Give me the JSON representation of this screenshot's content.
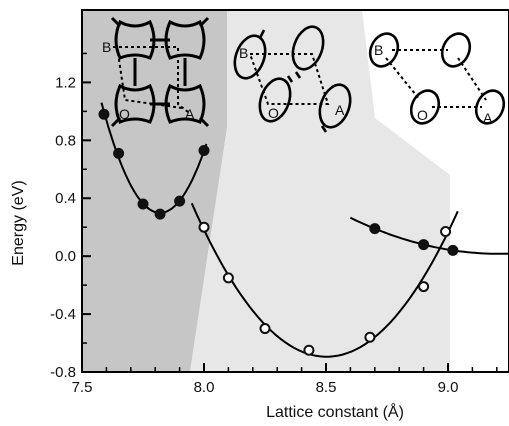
{
  "chart_data": {
    "type": "scatter",
    "xlabel": "Lattice constant (Å)",
    "ylabel": "Energy (eV)",
    "xlim": [
      7.5,
      9.25
    ],
    "ylim": [
      -0.8,
      1.7
    ],
    "x_ticks": [
      7.5,
      8.0,
      8.5,
      9.0
    ],
    "x_tick_labels": [
      "7.5",
      "8.0",
      "8.5",
      "9.0"
    ],
    "y_ticks": [
      -0.8,
      -0.4,
      0.0,
      0.4,
      0.8,
      1.2
    ],
    "y_tick_labels": [
      "-0.8",
      "-0.4",
      "0.0",
      "0.4",
      "0.8",
      "1.2"
    ],
    "grid": false,
    "legend": "none",
    "series": [
      {
        "marker": "filled-circle",
        "x": [
          7.59,
          7.65,
          7.75,
          7.82,
          7.9,
          8.0
        ],
        "y": [
          0.98,
          0.71,
          0.36,
          0.29,
          0.38,
          0.73
        ]
      },
      {
        "marker": "open-circle",
        "x": [
          8.0,
          8.1,
          8.25,
          8.43,
          8.68,
          8.9,
          8.99
        ],
        "y": [
          0.2,
          -0.15,
          -0.5,
          -0.65,
          -0.56,
          -0.21,
          0.17
        ]
      },
      {
        "marker": "filled-circle",
        "x": [
          8.7,
          8.9,
          9.02
        ],
        "y": [
          0.19,
          0.08,
          0.04
        ]
      }
    ],
    "regions": [
      {
        "name": "dark",
        "color": "#c6c6c6"
      },
      {
        "name": "light",
        "color": "#e7e7e7"
      },
      {
        "name": "white",
        "color": "#ffffff"
      }
    ],
    "insets": [
      {
        "atoms": [
          "B",
          "O",
          "A"
        ]
      },
      {
        "atoms": [
          "B",
          "O",
          "A"
        ]
      },
      {
        "atoms": [
          "B",
          "O",
          "A"
        ]
      }
    ]
  }
}
